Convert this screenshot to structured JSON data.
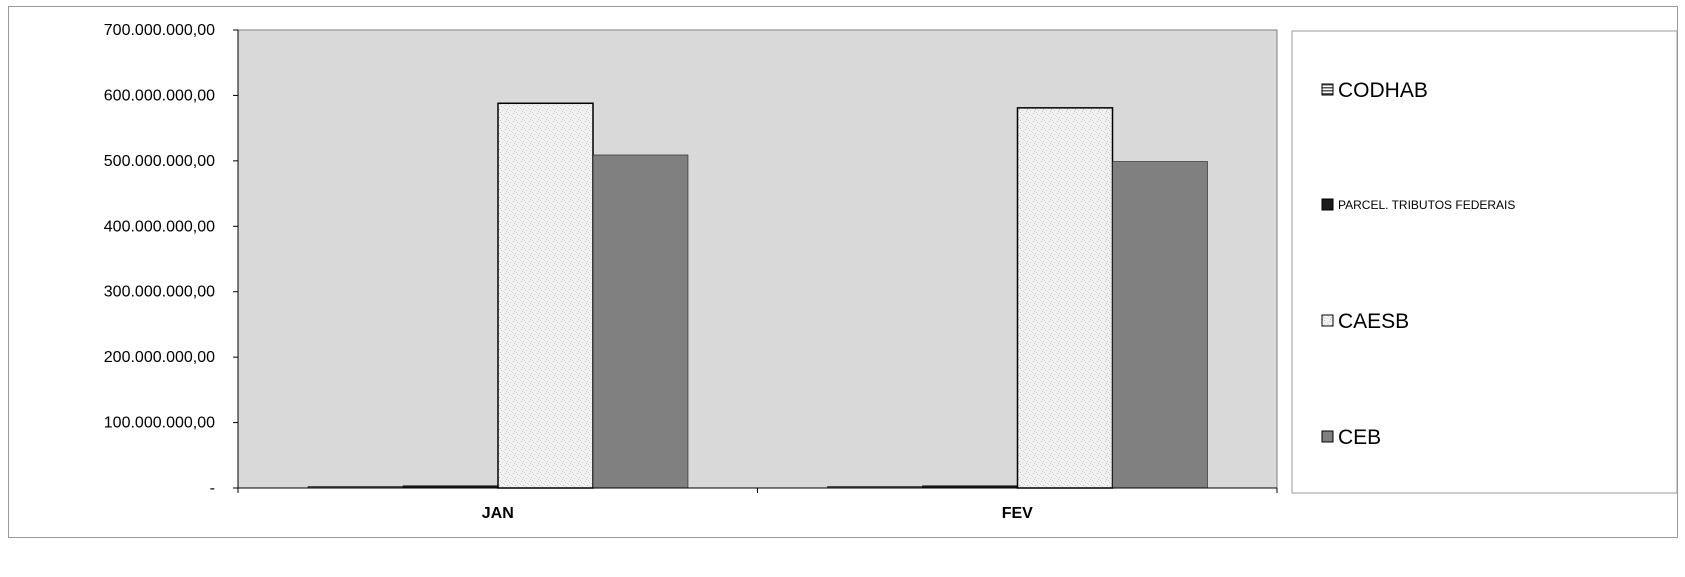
{
  "chart_data": {
    "type": "bar",
    "categories": [
      "JAN",
      "FEV"
    ],
    "series": [
      {
        "name": "CODHAB",
        "values": [
          1500000,
          1500000
        ],
        "color": "#808080",
        "pattern": "horizontal-lines"
      },
      {
        "name": "PARCEL. TRIBUTOS FEDERAIS",
        "values": [
          3500000,
          3500000
        ],
        "color": "#1a1a1a",
        "pattern": "solid"
      },
      {
        "name": "CAESB",
        "values": [
          588000000,
          581000000
        ],
        "color": "#f0f0f0",
        "pattern": "speckle"
      },
      {
        "name": "CEB",
        "values": [
          509000000,
          499000000
        ],
        "color": "#808080",
        "pattern": "solid"
      }
    ],
    "ylim": [
      0,
      700000000
    ],
    "y_ticks": [
      {
        "value": 0,
        "label": "-"
      },
      {
        "value": 100000000,
        "label": "100.000.000,00"
      },
      {
        "value": 200000000,
        "label": "200.000.000,00"
      },
      {
        "value": 300000000,
        "label": "300.000.000,00"
      },
      {
        "value": 400000000,
        "label": "400.000.000,00"
      },
      {
        "value": 500000000,
        "label": "500.000.000,00"
      },
      {
        "value": 600000000,
        "label": "600.000.000,00"
      },
      {
        "value": 700000000,
        "label": "700.000.000,00"
      }
    ],
    "grid": false,
    "plot_background": "#d9d9d9",
    "legend_position": "right"
  }
}
